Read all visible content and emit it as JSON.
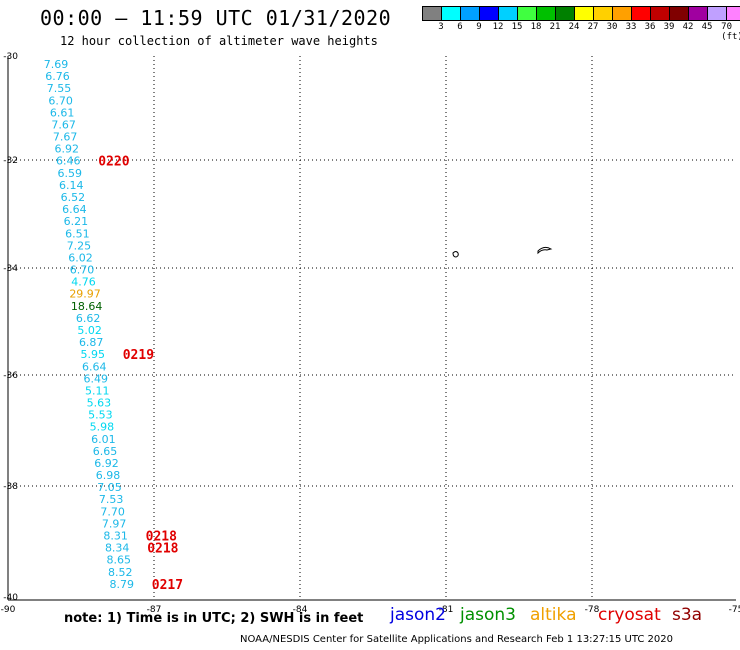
{
  "header": {
    "title": "00:00 – 11:59 UTC 01/31/2020",
    "subtitle": "12 hour collection of altimeter wave heights"
  },
  "legend": {
    "colors": [
      "#808080",
      "#00ffff",
      "#00a0ff",
      "#0000ff",
      "#00d0ff",
      "#40ff40",
      "#00c000",
      "#008000",
      "#ffff00",
      "#ffd000",
      "#ffa000",
      "#ff0000",
      "#c00000",
      "#800000",
      "#a000a0",
      "#c0a0ff",
      "#ff80ff",
      "#000000"
    ],
    "labels": [
      "3",
      "6",
      "9",
      "12",
      "15",
      "18",
      "21",
      "24",
      "27",
      "30",
      "33",
      "36",
      "39",
      "42",
      "45",
      "70 (ft)"
    ]
  },
  "axes": {
    "lat_labels": [
      "-30",
      "-32",
      "-34",
      "-36",
      "-38",
      "-40"
    ],
    "lon_labels": [
      "-90",
      "-87",
      "-84",
      "-81",
      "-78",
      "-75"
    ]
  },
  "track": {
    "points": [
      {
        "v": "7.69",
        "c": "#1cb8e8"
      },
      {
        "v": "6.76",
        "c": "#1cb8e8"
      },
      {
        "v": "7.55",
        "c": "#1cb8e8"
      },
      {
        "v": "6.70",
        "c": "#1cb8e8"
      },
      {
        "v": "6.61",
        "c": "#1cb8e8"
      },
      {
        "v": "7.67",
        "c": "#1cb8e8"
      },
      {
        "v": "7.67",
        "c": "#1cb8e8"
      },
      {
        "v": "6.92",
        "c": "#1cb8e8"
      },
      {
        "v": "6.46",
        "c": "#1cb8e8"
      },
      {
        "v": "6.59",
        "c": "#1cb8e8"
      },
      {
        "v": "6.14",
        "c": "#1cb8e8"
      },
      {
        "v": "6.52",
        "c": "#1cb8e8"
      },
      {
        "v": "6.64",
        "c": "#1cb8e8"
      },
      {
        "v": "6.21",
        "c": "#1cb8e8"
      },
      {
        "v": "6.51",
        "c": "#1cb8e8"
      },
      {
        "v": "7.25",
        "c": "#1cb8e8"
      },
      {
        "v": "6.02",
        "c": "#1cb8e8"
      },
      {
        "v": "6.70",
        "c": "#1cb8e8"
      },
      {
        "v": "4.76",
        "c": "#00d8f0"
      },
      {
        "v": "29.97",
        "c": "#e8a000"
      },
      {
        "v": "18.64",
        "c": "#006000"
      },
      {
        "v": "6.62",
        "c": "#1cb8e8"
      },
      {
        "v": "5.02",
        "c": "#00d8f0"
      },
      {
        "v": "6.87",
        "c": "#1cb8e8"
      },
      {
        "v": "5.95",
        "c": "#00d8f0"
      },
      {
        "v": "6.64",
        "c": "#1cb8e8"
      },
      {
        "v": "6.49",
        "c": "#1cb8e8"
      },
      {
        "v": "5.11",
        "c": "#00d8f0"
      },
      {
        "v": "5.63",
        "c": "#00d8f0"
      },
      {
        "v": "5.53",
        "c": "#00d8f0"
      },
      {
        "v": "5.98",
        "c": "#00d8f0"
      },
      {
        "v": "6.01",
        "c": "#1cb8e8"
      },
      {
        "v": "6.65",
        "c": "#1cb8e8"
      },
      {
        "v": "6.92",
        "c": "#1cb8e8"
      },
      {
        "v": "6.98",
        "c": "#1cb8e8"
      },
      {
        "v": "7.05",
        "c": "#1cb8e8"
      },
      {
        "v": "7.53",
        "c": "#1cb8e8"
      },
      {
        "v": "7.70",
        "c": "#1cb8e8"
      },
      {
        "v": "7.97",
        "c": "#1cb8e8"
      },
      {
        "v": "8.31",
        "c": "#1cb8e8"
      },
      {
        "v": "8.34",
        "c": "#1cb8e8"
      },
      {
        "v": "8.65",
        "c": "#1cb8e8"
      },
      {
        "v": "8.52",
        "c": "#1cb8e8"
      },
      {
        "v": "8.79",
        "c": "#1cb8e8"
      }
    ],
    "time_labels": [
      {
        "text": "0220",
        "after": "6.46"
      },
      {
        "text": "0219",
        "after": "5.95"
      },
      {
        "text": "0218",
        "after": "8.31"
      },
      {
        "text": "0218",
        "after": "8.34"
      },
      {
        "text": "0217",
        "after": "8.79"
      }
    ],
    "time_color": "#e00000"
  },
  "footer": {
    "note": "note:  1) Time is in UTC;  2) SWH is in feet",
    "credit": "NOAA/NESDIS Center for Satellite Applications and Research     Feb  1 13:27:15 UTC 2020",
    "satellites": [
      {
        "name": "jason2",
        "color": "#0000e0"
      },
      {
        "name": "jason3",
        "color": "#009000"
      },
      {
        "name": "altika",
        "color": "#f0a000"
      },
      {
        "name": "cryosat",
        "color": "#e00000"
      },
      {
        "name": "s3a",
        "color": "#900000"
      }
    ]
  }
}
